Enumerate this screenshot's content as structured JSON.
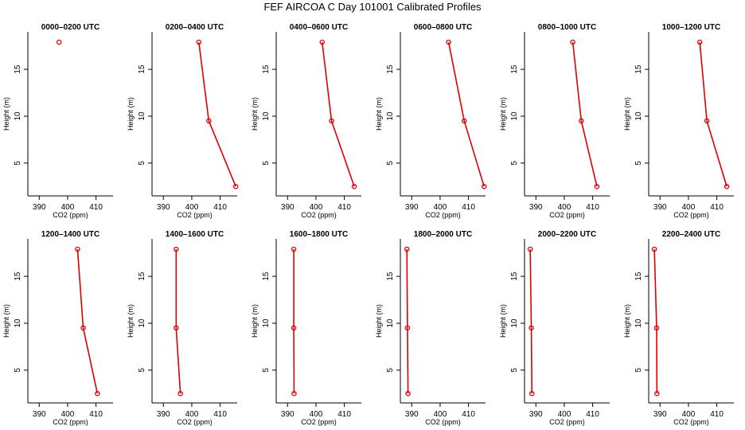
{
  "title": "FEF AIRCOA C  Day 101001  Calibrated Profiles",
  "colors": {
    "series": "#dd0000",
    "axis": "#000000"
  },
  "chart_data": [
    {
      "type": "line",
      "title": "0000–0200 UTC",
      "xlabel": "CO2 (ppm)",
      "ylabel": "Height (m)",
      "xlim": [
        386,
        416
      ],
      "ylim": [
        1.5,
        19
      ],
      "xticks": [
        390,
        400,
        410
      ],
      "yticks": [
        5,
        10,
        15
      ],
      "points": [
        {
          "x": 397.0,
          "y": 17.9
        }
      ]
    },
    {
      "type": "line",
      "title": "0200–0400 UTC",
      "xlabel": "CO2 (ppm)",
      "ylabel": "Height (m)",
      "xlim": [
        386,
        416
      ],
      "ylim": [
        1.5,
        19
      ],
      "xticks": [
        390,
        400,
        410
      ],
      "yticks": [
        5,
        10,
        15
      ],
      "points": [
        {
          "x": 402.5,
          "y": 17.9
        },
        {
          "x": 406.0,
          "y": 9.5
        },
        {
          "x": 415.5,
          "y": 2.5
        }
      ]
    },
    {
      "type": "line",
      "title": "0400–0600 UTC",
      "xlabel": "CO2 (ppm)",
      "ylabel": "Height (m)",
      "xlim": [
        386,
        416
      ],
      "ylim": [
        1.5,
        19
      ],
      "xticks": [
        390,
        400,
        410
      ],
      "yticks": [
        5,
        10,
        15
      ],
      "points": [
        {
          "x": 402.2,
          "y": 17.9
        },
        {
          "x": 405.5,
          "y": 9.5
        },
        {
          "x": 413.5,
          "y": 2.5
        }
      ]
    },
    {
      "type": "line",
      "title": "0600–0800 UTC",
      "xlabel": "CO2 (ppm)",
      "ylabel": "Height (m)",
      "xlim": [
        386,
        416
      ],
      "ylim": [
        1.5,
        19
      ],
      "xticks": [
        390,
        400,
        410
      ],
      "yticks": [
        5,
        10,
        15
      ],
      "points": [
        {
          "x": 403.0,
          "y": 17.9
        },
        {
          "x": 408.5,
          "y": 9.5
        },
        {
          "x": 415.5,
          "y": 2.5
        }
      ]
    },
    {
      "type": "line",
      "title": "0800–1000 UTC",
      "xlabel": "CO2 (ppm)",
      "ylabel": "Height (m)",
      "xlim": [
        386,
        416
      ],
      "ylim": [
        1.5,
        19
      ],
      "xticks": [
        390,
        400,
        410
      ],
      "yticks": [
        5,
        10,
        15
      ],
      "points": [
        {
          "x": 403.0,
          "y": 17.9
        },
        {
          "x": 406.0,
          "y": 9.5
        },
        {
          "x": 411.5,
          "y": 2.5
        }
      ]
    },
    {
      "type": "line",
      "title": "1000–1200 UTC",
      "xlabel": "CO2 (ppm)",
      "ylabel": "Height (m)",
      "xlim": [
        386,
        416
      ],
      "ylim": [
        1.5,
        19
      ],
      "xticks": [
        390,
        400,
        410
      ],
      "yticks": [
        5,
        10,
        15
      ],
      "points": [
        {
          "x": 404.0,
          "y": 17.9
        },
        {
          "x": 406.5,
          "y": 9.5
        },
        {
          "x": 413.5,
          "y": 2.5
        }
      ]
    },
    {
      "type": "line",
      "title": "1200–1400 UTC",
      "xlabel": "CO2 (ppm)",
      "ylabel": "Height (m)",
      "xlim": [
        386,
        416
      ],
      "ylim": [
        1.5,
        19
      ],
      "xticks": [
        390,
        400,
        410
      ],
      "yticks": [
        5,
        10,
        15
      ],
      "points": [
        {
          "x": 403.5,
          "y": 17.9
        },
        {
          "x": 405.5,
          "y": 9.5
        },
        {
          "x": 410.5,
          "y": 2.5
        }
      ]
    },
    {
      "type": "line",
      "title": "1400–1600 UTC",
      "xlabel": "CO2 (ppm)",
      "ylabel": "Height (m)",
      "xlim": [
        386,
        416
      ],
      "ylim": [
        1.5,
        19
      ],
      "xticks": [
        390,
        400,
        410
      ],
      "yticks": [
        5,
        10,
        15
      ],
      "points": [
        {
          "x": 394.5,
          "y": 17.9
        },
        {
          "x": 394.5,
          "y": 9.5
        },
        {
          "x": 396.0,
          "y": 2.5
        }
      ]
    },
    {
      "type": "line",
      "title": "1600–1800 UTC",
      "xlabel": "CO2 (ppm)",
      "ylabel": "Height (m)",
      "xlim": [
        386,
        416
      ],
      "ylim": [
        1.5,
        19
      ],
      "xticks": [
        390,
        400,
        410
      ],
      "yticks": [
        5,
        10,
        15
      ],
      "points": [
        {
          "x": 392.2,
          "y": 17.9
        },
        {
          "x": 392.2,
          "y": 9.5
        },
        {
          "x": 392.3,
          "y": 2.5
        }
      ]
    },
    {
      "type": "line",
      "title": "1800–2000 UTC",
      "xlabel": "CO2 (ppm)",
      "ylabel": "Height (m)",
      "xlim": [
        386,
        416
      ],
      "ylim": [
        1.5,
        19
      ],
      "xticks": [
        390,
        400,
        410
      ],
      "yticks": [
        5,
        10,
        15
      ],
      "points": [
        {
          "x": 388.3,
          "y": 17.9
        },
        {
          "x": 388.5,
          "y": 9.5
        },
        {
          "x": 388.7,
          "y": 2.5
        }
      ]
    },
    {
      "type": "line",
      "title": "2000–2200 UTC",
      "xlabel": "CO2 (ppm)",
      "ylabel": "Height (m)",
      "xlim": [
        386,
        416
      ],
      "ylim": [
        1.5,
        19
      ],
      "xticks": [
        390,
        400,
        410
      ],
      "yticks": [
        5,
        10,
        15
      ],
      "points": [
        {
          "x": 388.0,
          "y": 17.9
        },
        {
          "x": 388.4,
          "y": 9.5
        },
        {
          "x": 388.6,
          "y": 2.5
        }
      ]
    },
    {
      "type": "line",
      "title": "2200–2400 UTC",
      "xlabel": "CO2 (ppm)",
      "ylabel": "Height (m)",
      "xlim": [
        386,
        416
      ],
      "ylim": [
        1.5,
        19
      ],
      "xticks": [
        390,
        400,
        410
      ],
      "yticks": [
        5,
        10,
        15
      ],
      "points": [
        {
          "x": 388.0,
          "y": 17.9
        },
        {
          "x": 388.8,
          "y": 9.5
        },
        {
          "x": 388.9,
          "y": 2.5
        }
      ]
    }
  ]
}
